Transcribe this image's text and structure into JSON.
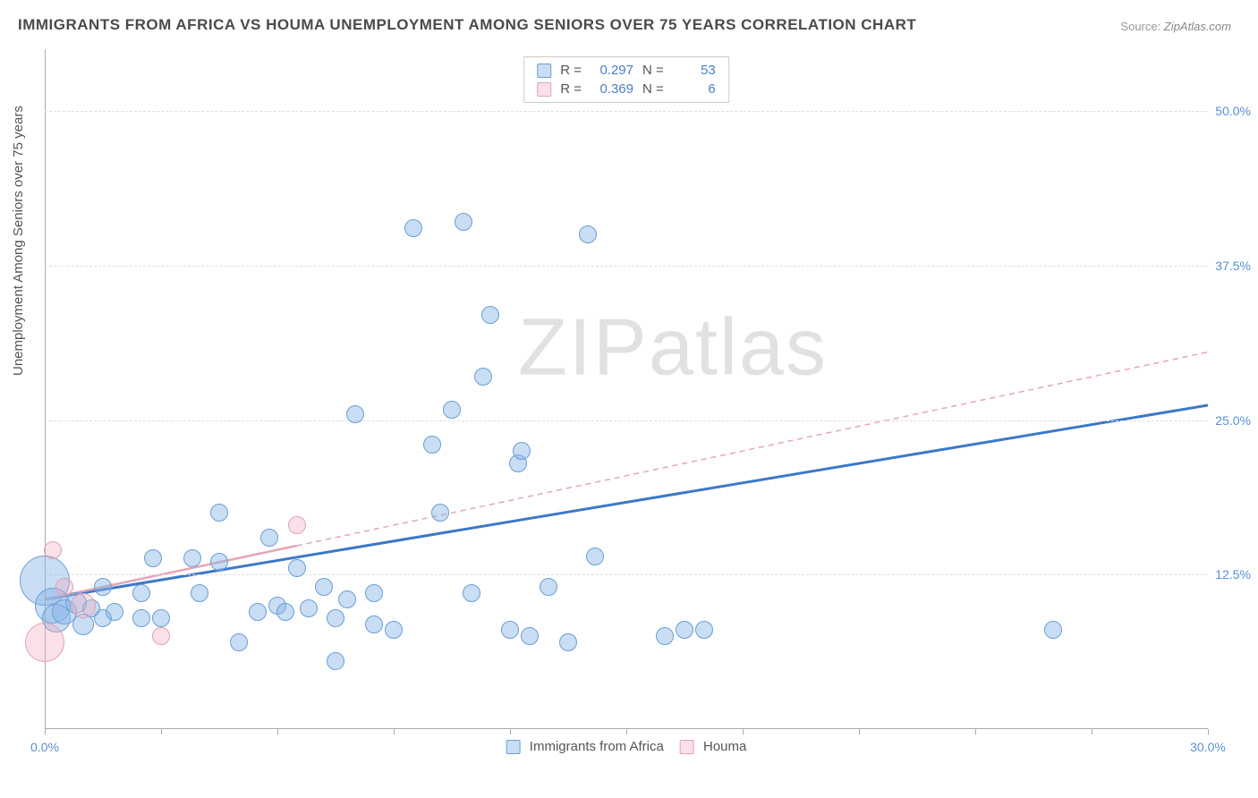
{
  "title": "IMMIGRANTS FROM AFRICA VS HOUMA UNEMPLOYMENT AMONG SENIORS OVER 75 YEARS CORRELATION CHART",
  "source_label": "Source:",
  "source_value": "ZipAtlas.com",
  "watermark": "ZIPatlas",
  "y_axis_label": "Unemployment Among Seniors over 75 years",
  "chart": {
    "type": "scatter",
    "xlim": [
      0,
      30
    ],
    "ylim": [
      0,
      55
    ],
    "x_ticks": [
      0,
      15,
      30
    ],
    "x_tick_labels": [
      "0.0%",
      "",
      "30.0%"
    ],
    "y_ticks": [
      12.5,
      25.0,
      37.5,
      50.0
    ],
    "y_tick_labels": [
      "12.5%",
      "25.0%",
      "37.5%",
      "50.0%"
    ],
    "grid_color": "#dddddd",
    "axis_color": "#aaaaaa",
    "background_color": "#ffffff",
    "minor_x_ticks": [
      3,
      6,
      9,
      12,
      18,
      21,
      24,
      27
    ],
    "series": [
      {
        "name": "Immigrants from Africa",
        "color_fill": "rgba(135,180,230,0.45)",
        "color_stroke": "#6a9fd4",
        "R": 0.297,
        "N": 53,
        "line": {
          "x1": 0,
          "y1": 10.5,
          "x2": 30,
          "y2": 26.2,
          "dash": "none",
          "width": 3,
          "color": "#3d78c9"
        },
        "points": [
          {
            "x": 0.0,
            "y": 12.0,
            "r": 28
          },
          {
            "x": 0.2,
            "y": 10.0,
            "r": 20
          },
          {
            "x": 0.3,
            "y": 9.0,
            "r": 16
          },
          {
            "x": 0.5,
            "y": 9.5,
            "r": 14
          },
          {
            "x": 0.8,
            "y": 10.2,
            "r": 12
          },
          {
            "x": 1.0,
            "y": 8.5,
            "r": 12
          },
          {
            "x": 1.2,
            "y": 9.8,
            "r": 10
          },
          {
            "x": 1.5,
            "y": 9.0,
            "r": 10
          },
          {
            "x": 1.5,
            "y": 11.5,
            "r": 10
          },
          {
            "x": 1.8,
            "y": 9.5,
            "r": 10
          },
          {
            "x": 2.5,
            "y": 9.0,
            "r": 10
          },
          {
            "x": 2.5,
            "y": 11.0,
            "r": 10
          },
          {
            "x": 2.8,
            "y": 13.8,
            "r": 10
          },
          {
            "x": 3.0,
            "y": 9.0,
            "r": 10
          },
          {
            "x": 3.8,
            "y": 13.8,
            "r": 10
          },
          {
            "x": 4.0,
            "y": 11.0,
            "r": 10
          },
          {
            "x": 4.5,
            "y": 13.5,
            "r": 10
          },
          {
            "x": 4.5,
            "y": 17.5,
            "r": 10
          },
          {
            "x": 5.0,
            "y": 7.0,
            "r": 10
          },
          {
            "x": 5.5,
            "y": 9.5,
            "r": 10
          },
          {
            "x": 5.8,
            "y": 15.5,
            "r": 10
          },
          {
            "x": 6.0,
            "y": 10.0,
            "r": 10
          },
          {
            "x": 6.2,
            "y": 9.5,
            "r": 10
          },
          {
            "x": 6.5,
            "y": 13.0,
            "r": 10
          },
          {
            "x": 6.8,
            "y": 9.8,
            "r": 10
          },
          {
            "x": 7.2,
            "y": 11.5,
            "r": 10
          },
          {
            "x": 7.5,
            "y": 5.5,
            "r": 10
          },
          {
            "x": 7.5,
            "y": 9.0,
            "r": 10
          },
          {
            "x": 7.8,
            "y": 10.5,
            "r": 10
          },
          {
            "x": 8.0,
            "y": 25.5,
            "r": 10
          },
          {
            "x": 8.5,
            "y": 8.5,
            "r": 10
          },
          {
            "x": 8.5,
            "y": 11.0,
            "r": 10
          },
          {
            "x": 9.0,
            "y": 8.0,
            "r": 10
          },
          {
            "x": 9.5,
            "y": 40.5,
            "r": 10
          },
          {
            "x": 10.0,
            "y": 23.0,
            "r": 10
          },
          {
            "x": 10.2,
            "y": 17.5,
            "r": 10
          },
          {
            "x": 10.5,
            "y": 25.8,
            "r": 10
          },
          {
            "x": 10.8,
            "y": 41.0,
            "r": 10
          },
          {
            "x": 11.0,
            "y": 11.0,
            "r": 10
          },
          {
            "x": 11.3,
            "y": 28.5,
            "r": 10
          },
          {
            "x": 11.5,
            "y": 33.5,
            "r": 10
          },
          {
            "x": 12.0,
            "y": 8.0,
            "r": 10
          },
          {
            "x": 12.2,
            "y": 21.5,
            "r": 10
          },
          {
            "x": 12.3,
            "y": 22.5,
            "r": 10
          },
          {
            "x": 12.5,
            "y": 7.5,
            "r": 10
          },
          {
            "x": 13.0,
            "y": 11.5,
            "r": 10
          },
          {
            "x": 13.5,
            "y": 7.0,
            "r": 10
          },
          {
            "x": 14.0,
            "y": 40.0,
            "r": 10
          },
          {
            "x": 14.2,
            "y": 14.0,
            "r": 10
          },
          {
            "x": 16.0,
            "y": 7.5,
            "r": 10
          },
          {
            "x": 16.5,
            "y": 8.0,
            "r": 10
          },
          {
            "x": 17.0,
            "y": 8.0,
            "r": 10
          },
          {
            "x": 26.0,
            "y": 8.0,
            "r": 10
          }
        ]
      },
      {
        "name": "Houma",
        "color_fill": "rgba(240,170,190,0.35)",
        "color_stroke": "#e0a0b5",
        "R": 0.369,
        "N": 6,
        "line": {
          "x1": 0,
          "y1": 10.5,
          "x2": 30,
          "y2": 30.5,
          "dash": "6 5",
          "width": 1.5,
          "color": "#e6a5b8"
        },
        "line_solid_end_x": 6.5,
        "points": [
          {
            "x": 0.0,
            "y": 7.0,
            "r": 22
          },
          {
            "x": 0.2,
            "y": 14.5,
            "r": 10
          },
          {
            "x": 0.5,
            "y": 11.5,
            "r": 10
          },
          {
            "x": 1.0,
            "y": 10.0,
            "r": 14
          },
          {
            "x": 3.0,
            "y": 7.5,
            "r": 10
          },
          {
            "x": 6.5,
            "y": 16.5,
            "r": 10
          }
        ]
      }
    ]
  },
  "legend_top": {
    "r_label": "R =",
    "n_label": "N ="
  },
  "legend_bottom": {
    "series1": "Immigrants from Africa",
    "series2": "Houma"
  }
}
